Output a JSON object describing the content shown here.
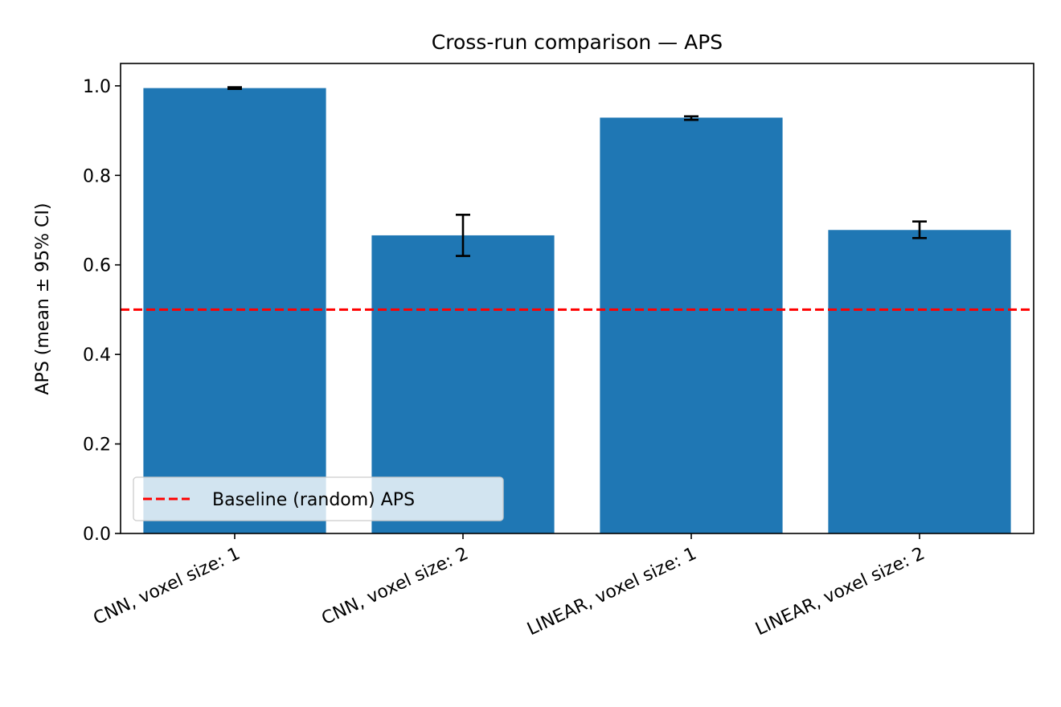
{
  "chart_data": {
    "type": "bar",
    "title": "Cross-run comparison — APS",
    "xlabel": "",
    "ylabel": "APS (mean ± 95% CI)",
    "categories": [
      "CNN, voxel size: 1",
      "CNN, voxel size: 2",
      "LINEAR, voxel size: 1",
      "LINEAR, voxel size: 2"
    ],
    "series": [
      {
        "values": [
          0.995,
          0.666,
          0.929,
          0.678
        ],
        "ci_lower": [
          0.993,
          0.62,
          0.924,
          0.66
        ],
        "ci_upper": [
          0.997,
          0.712,
          0.932,
          0.697
        ]
      }
    ],
    "ylim": [
      0,
      1.05
    ],
    "yticks": [
      "0.0",
      "0.2",
      "0.4",
      "0.6",
      "0.8",
      "1.0"
    ],
    "reference_line": {
      "label": "Baseline (random) APS",
      "value": 0.5,
      "style": "dashed",
      "color": "#ff0000"
    },
    "legend": {
      "placement": "lower-left",
      "entries": [
        "Baseline (random) APS"
      ]
    },
    "grid": false,
    "colors": {
      "bar": "#1f77b4",
      "errorbar": "#000000",
      "baseline": "#ff0000"
    }
  }
}
